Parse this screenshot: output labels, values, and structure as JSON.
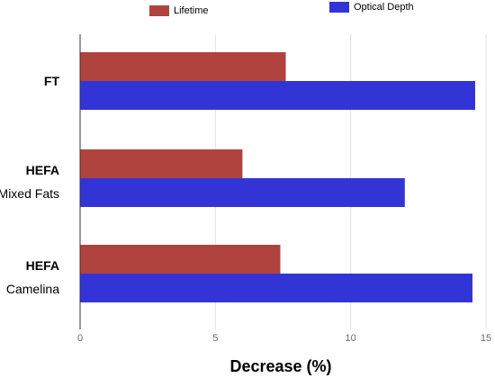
{
  "chart_data": {
    "type": "bar",
    "orientation": "horizontal",
    "categories": [
      {
        "lines": [
          "FT"
        ],
        "bold": [
          true
        ]
      },
      {
        "lines": [
          "HEFA",
          "Mixed Fats"
        ],
        "bold": [
          true,
          false
        ]
      },
      {
        "lines": [
          "HEFA",
          "Camelina"
        ],
        "bold": [
          true,
          false
        ]
      }
    ],
    "series": [
      {
        "name": "Lifetime",
        "color": "#b0433d",
        "values": [
          7.6,
          6.0,
          7.4
        ]
      },
      {
        "name": "Optical Depth",
        "color": "#3234d6",
        "values": [
          14.6,
          12.0,
          14.5
        ]
      }
    ],
    "xlabel": "Decrease (%)",
    "xlim": [
      0,
      15
    ],
    "xticks": [
      0,
      5,
      10,
      15
    ],
    "grid": true,
    "legend_position": "top"
  }
}
